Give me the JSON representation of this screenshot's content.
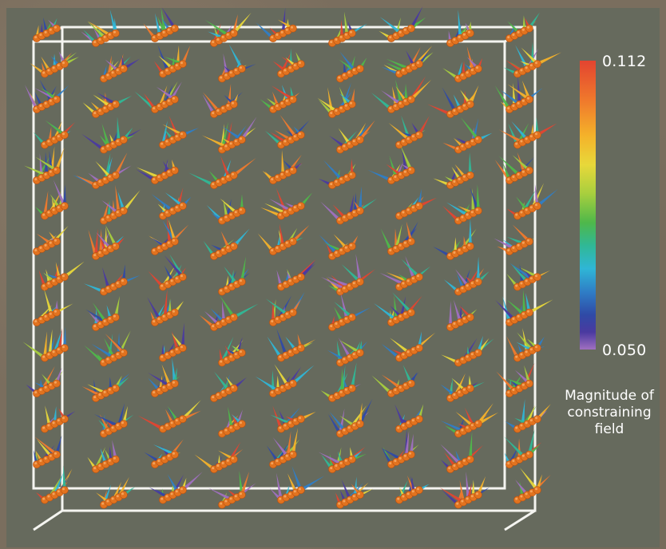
{
  "colorbar": {
    "max_label": "0.112",
    "min_label": "0.050",
    "title_lines": [
      "Magnitude of",
      "constraining",
      "field"
    ],
    "colors": [
      "#e34430",
      "#f07a2c",
      "#f4b22a",
      "#e8d83a",
      "#a8cf3e",
      "#4fb84a",
      "#30b896",
      "#2fb6d6",
      "#2f7ec6",
      "#2f4aa6",
      "#4a3aa0",
      "#a070c0"
    ]
  },
  "scene": {
    "background_color": "#666a5d",
    "frame_color": "#f4f4f0",
    "bead_color": "#e2731f",
    "bead_highlight": "#f4a35c"
  }
}
